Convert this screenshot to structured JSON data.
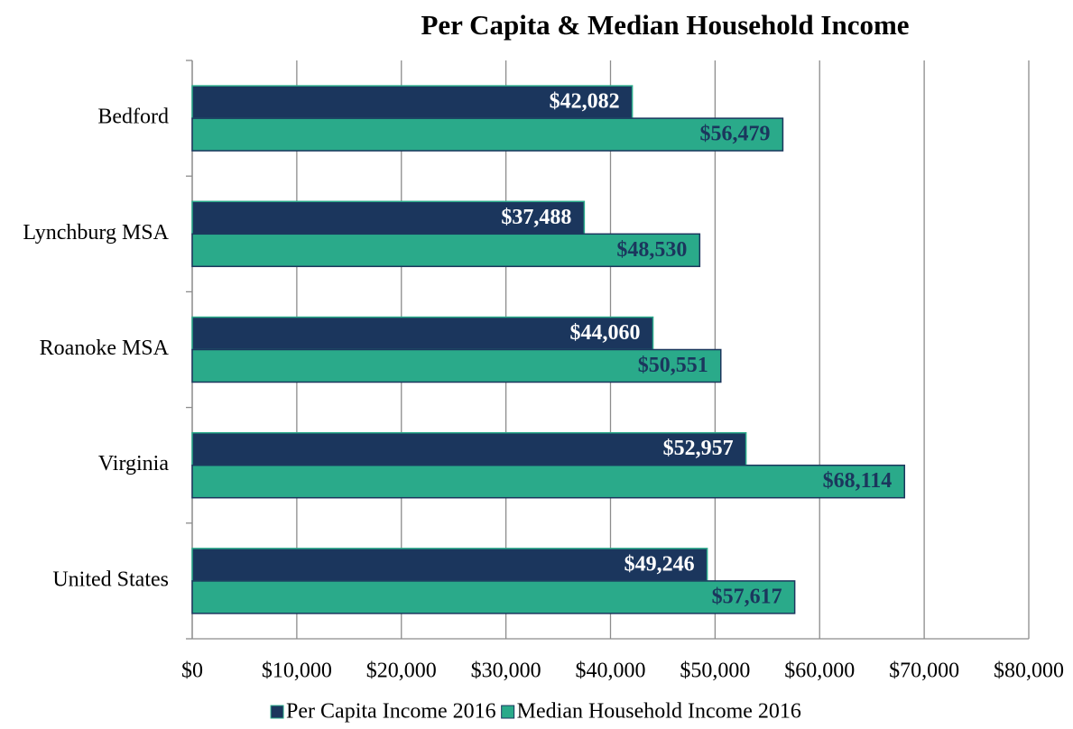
{
  "chart_data": {
    "type": "hbar",
    "title": "Per Capita & Median Household Income",
    "categories": [
      "Bedford",
      "Lynchburg MSA",
      "Roanoke MSA",
      "Virginia",
      "United States"
    ],
    "series": [
      {
        "name": "Per Capita Income 2016",
        "color": "#1b365d",
        "label_color": "#ffffff",
        "values": [
          42082,
          37488,
          44060,
          52957,
          49246
        ],
        "value_labels": [
          "$42,082",
          "$37,488",
          "$44,060",
          "$52,957",
          "$49,246"
        ]
      },
      {
        "name": "Median Household Income 2016",
        "color": "#2aaa8a",
        "label_color": "#1b365d",
        "values": [
          56479,
          48530,
          50551,
          68114,
          57617
        ],
        "value_labels": [
          "$56,479",
          "$48,530",
          "$50,551",
          "$68,114",
          "$57,617"
        ]
      }
    ],
    "xlim": [
      0,
      80000
    ],
    "xticks": [
      {
        "value": 0,
        "label": "$0"
      },
      {
        "value": 10000,
        "label": "$10,000"
      },
      {
        "value": 20000,
        "label": "$20,000"
      },
      {
        "value": 30000,
        "label": "$30,000"
      },
      {
        "value": 40000,
        "label": "$40,000"
      },
      {
        "value": 50000,
        "label": "$50,000"
      },
      {
        "value": 60000,
        "label": "$60,000"
      },
      {
        "value": 70000,
        "label": "$70,000"
      },
      {
        "value": 80000,
        "label": "$80,000"
      }
    ],
    "grid": true,
    "legend": "bottom"
  }
}
